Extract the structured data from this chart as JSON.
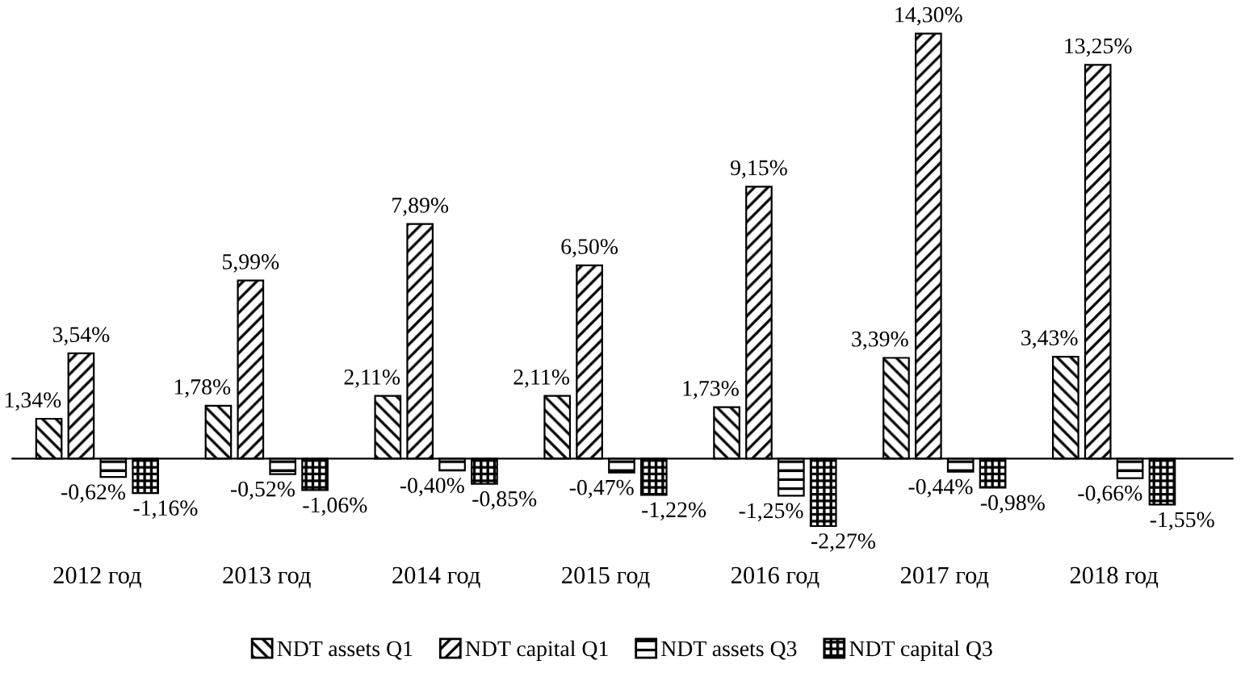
{
  "chart_data": {
    "type": "bar",
    "categories": [
      "2012 год",
      "2013 год",
      "2014 год",
      "2015 год",
      "2016 год",
      "2017 год",
      "2018 год"
    ],
    "series": [
      {
        "name": "NDT assets Q1",
        "color": "#000000",
        "values": [
          1.34,
          1.78,
          2.11,
          2.11,
          1.73,
          3.39,
          3.43
        ],
        "value_labels": [
          "1,34%",
          "1,78%",
          "2,11%",
          "2,11%",
          "1,73%",
          "3,39%",
          "3,43%"
        ]
      },
      {
        "name": "NDT capital Q1",
        "color": "#000000",
        "values": [
          3.54,
          5.99,
          7.89,
          6.5,
          9.15,
          14.3,
          13.25
        ],
        "value_labels": [
          "3,54%",
          "5,99%",
          "7,89%",
          "6,50%",
          "9,15%",
          "14,30%",
          "13,25%"
        ]
      },
      {
        "name": "NDT assets Q3",
        "color": "#000000",
        "values": [
          -0.62,
          -0.52,
          -0.4,
          -0.47,
          -1.25,
          -0.44,
          -0.66
        ],
        "value_labels": [
          "-0,62%",
          "-0,52%",
          "-0,40%",
          "-0,47%",
          "-1,25%",
          "-0,44%",
          "-0,66%"
        ]
      },
      {
        "name": "NDT capital Q3",
        "color": "#000000",
        "values": [
          -1.16,
          -1.06,
          -0.85,
          -1.22,
          -2.27,
          -0.98,
          -1.55
        ],
        "value_labels": [
          "-1,16%",
          "-1,06%",
          "-0,85%",
          "-1,22%",
          "-2,27%",
          "-0,98%",
          "-1,55%"
        ]
      }
    ],
    "legend": "bottom",
    "grid": false,
    "tick_labels": "x"
  }
}
